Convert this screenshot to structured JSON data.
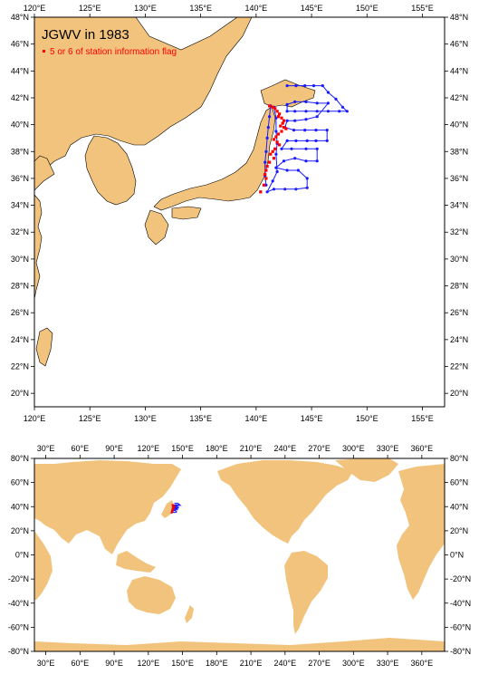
{
  "top_map": {
    "title": "JGWV in 1983",
    "legend_label": "5 or 6 of station information flag",
    "lon_labels": [
      "120°E",
      "125°E",
      "130°E",
      "135°E",
      "140°E",
      "145°E",
      "150°E",
      "155°E"
    ],
    "lat_labels": [
      "20°N",
      "22°N",
      "24°N",
      "26°N",
      "28°N",
      "30°N",
      "32°N",
      "34°N",
      "36°N",
      "38°N",
      "40°N",
      "42°N",
      "44°N",
      "46°N",
      "48°N"
    ],
    "lon_range": [
      120,
      157
    ],
    "lat_range": [
      19,
      48
    ]
  },
  "bottom_map": {
    "lon_labels": [
      "30°E",
      "60°E",
      "90°E",
      "120°E",
      "150°E",
      "180°E",
      "210°E",
      "240°E",
      "270°E",
      "300°E",
      "330°E",
      "360°E"
    ],
    "lat_labels": [
      "-80°N",
      "-60°N",
      "-40°N",
      "-20°N",
      "0°N",
      "20°N",
      "40°N",
      "60°N",
      "80°N"
    ],
    "lon_range": [
      20,
      380
    ],
    "lat_range": [
      -80,
      80
    ]
  },
  "colors": {
    "land": "#f2c37d",
    "track": "#1a1aff",
    "flag": "#ff0000"
  },
  "chart_data": {
    "type": "scatter",
    "series": [
      {
        "name": "",
        "points": [
          [
            142.8,
            42.9
          ],
          [
            143.6,
            42.9
          ],
          [
            144.4,
            42.9
          ],
          [
            145.2,
            42.9
          ],
          [
            146.0,
            42.9
          ],
          [
            146.5,
            42.4
          ],
          [
            147.2,
            41.9
          ],
          [
            147.8,
            41.3
          ],
          [
            148.2,
            41.0
          ],
          [
            147.5,
            41.0
          ],
          [
            146.5,
            41.0
          ],
          [
            145.5,
            41.0
          ],
          [
            144.5,
            41.0
          ],
          [
            143.5,
            41.0
          ],
          [
            142.8,
            41.0
          ],
          [
            142.8,
            41.5
          ],
          [
            143.5,
            41.7
          ],
          [
            144.5,
            41.7
          ],
          [
            145.5,
            41.6
          ],
          [
            146.5,
            41.6
          ],
          [
            145.5,
            40.6
          ],
          [
            144.5,
            40.4
          ],
          [
            143.5,
            40.3
          ],
          [
            142.8,
            40.3
          ],
          [
            142.6,
            39.8
          ],
          [
            143.4,
            39.6
          ],
          [
            144.4,
            39.6
          ],
          [
            145.4,
            39.6
          ],
          [
            146.4,
            39.6
          ],
          [
            146.4,
            38.8
          ],
          [
            145.4,
            38.8
          ],
          [
            144.6,
            38.8
          ],
          [
            143.6,
            38.8
          ],
          [
            142.8,
            38.8
          ],
          [
            142.3,
            38.2
          ],
          [
            143.2,
            38.2
          ],
          [
            144.5,
            38.2
          ],
          [
            145.5,
            38.2
          ],
          [
            145.5,
            37.3
          ],
          [
            144.5,
            37.3
          ],
          [
            143.5,
            37.5
          ],
          [
            142.5,
            37.3
          ],
          [
            141.8,
            36.8
          ],
          [
            142.8,
            36.6
          ],
          [
            143.8,
            36.6
          ],
          [
            144.6,
            36.0
          ],
          [
            144.6,
            35.3
          ],
          [
            143.6,
            35.2
          ],
          [
            142.6,
            35.2
          ],
          [
            141.6,
            35.2
          ],
          [
            141.0,
            35.0
          ],
          [
            141.5,
            35.8
          ],
          [
            141.9,
            36.5
          ],
          [
            141.8,
            37.8
          ],
          [
            141.9,
            38.6
          ],
          [
            141.8,
            39.5
          ],
          [
            141.8,
            40.5
          ],
          [
            141.6,
            41.3
          ],
          [
            141.3,
            41.4
          ],
          [
            141.2,
            40.6
          ],
          [
            141.1,
            39.8
          ],
          [
            141.0,
            39.0
          ],
          [
            140.9,
            38.0
          ],
          [
            140.8,
            37.2
          ],
          [
            140.8,
            36.2
          ],
          [
            140.9,
            35.5
          ]
        ]
      },
      {
        "name": "5 or 6 of station information flag",
        "points": [
          [
            141.2,
            41.4
          ],
          [
            141.5,
            41.3
          ],
          [
            141.7,
            41.2
          ],
          [
            141.9,
            41.0
          ],
          [
            142.1,
            40.8
          ],
          [
            142.0,
            40.6
          ],
          [
            142.3,
            40.5
          ],
          [
            142.5,
            40.3
          ],
          [
            142.4,
            40.1
          ],
          [
            142.2,
            39.9
          ],
          [
            142.5,
            39.8
          ],
          [
            142.7,
            39.7
          ],
          [
            142.3,
            39.5
          ],
          [
            142.0,
            39.3
          ],
          [
            141.8,
            39.1
          ],
          [
            141.6,
            38.9
          ],
          [
            141.9,
            38.7
          ],
          [
            142.1,
            38.5
          ],
          [
            141.7,
            38.2
          ],
          [
            141.5,
            38.0
          ],
          [
            141.3,
            37.8
          ],
          [
            141.6,
            37.5
          ],
          [
            141.2,
            37.2
          ],
          [
            141.0,
            36.9
          ],
          [
            140.9,
            36.6
          ],
          [
            140.8,
            36.3
          ],
          [
            140.9,
            36.0
          ],
          [
            140.7,
            35.5
          ],
          [
            140.4,
            35.0
          ]
        ]
      }
    ]
  }
}
